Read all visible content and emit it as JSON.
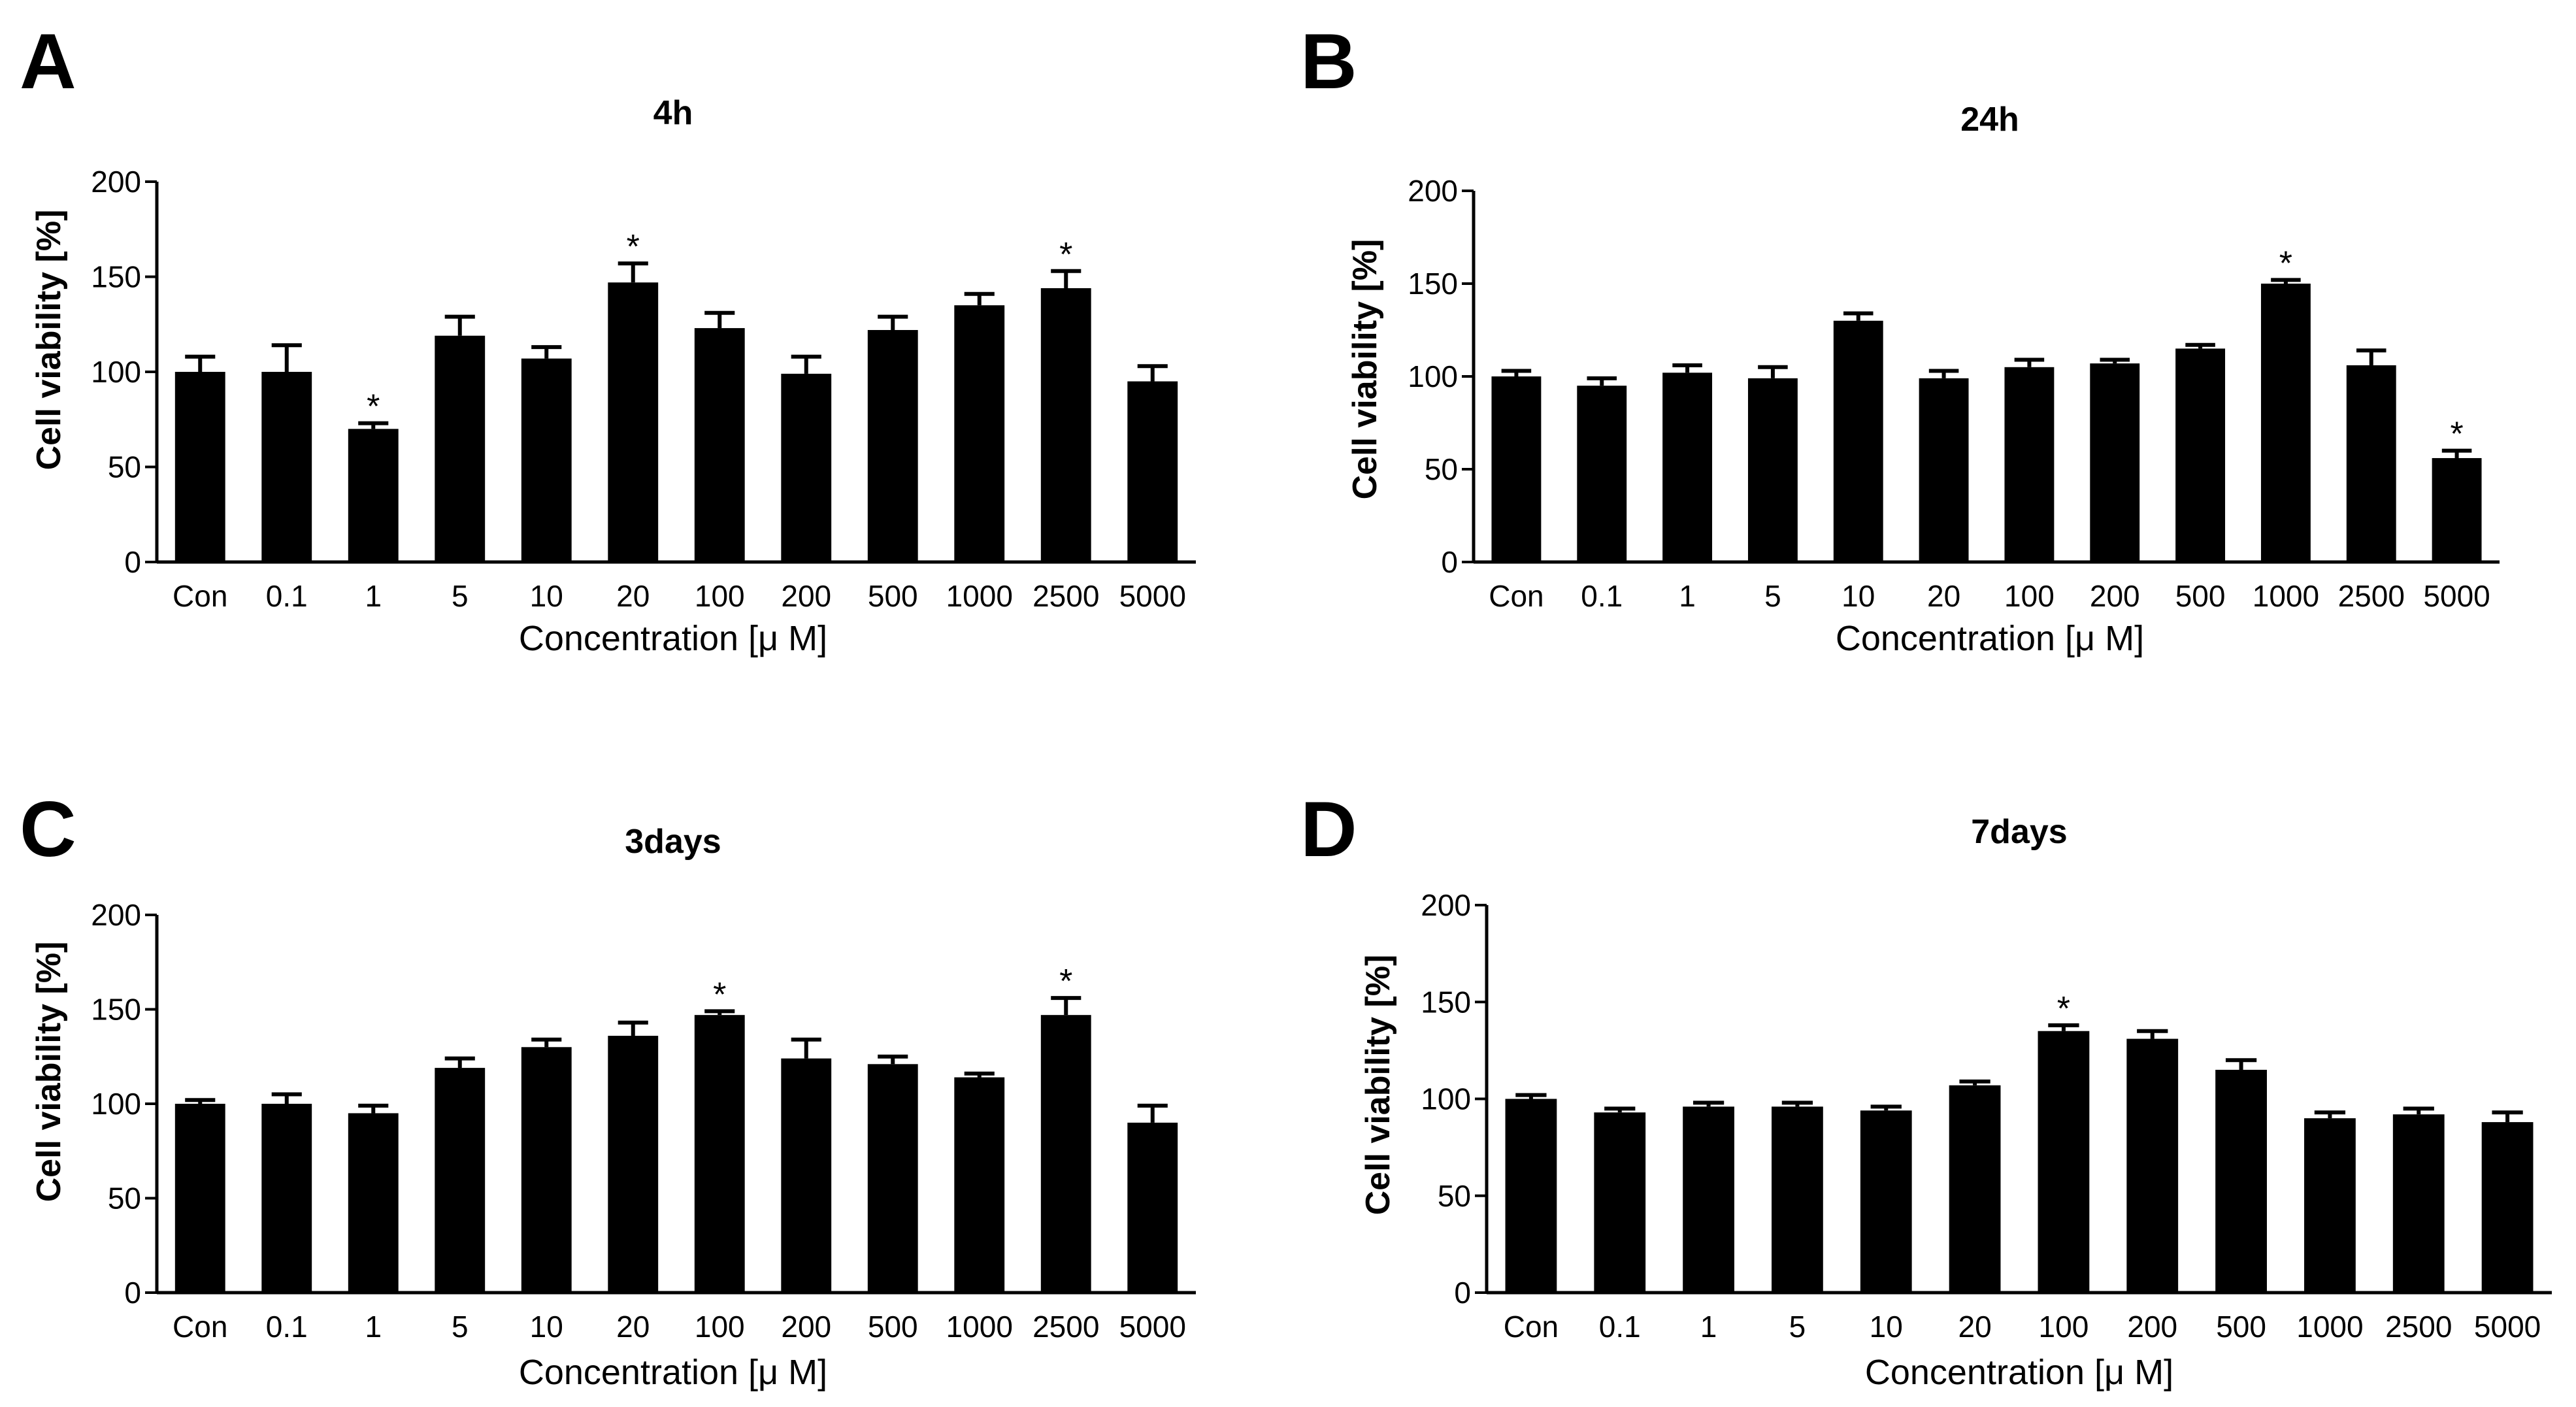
{
  "chart_data": [
    {
      "panel": "A",
      "type": "bar",
      "title": "4h",
      "xlabel": "Concentration [μ M]",
      "ylabel": "Cell viability [%]",
      "ylim": [
        0,
        200
      ],
      "yticks": [
        0,
        50,
        100,
        150,
        200
      ],
      "categories": [
        "Con",
        "0.1",
        "1",
        "5",
        "10",
        "20",
        "100",
        "200",
        "500",
        "1000",
        "2500",
        "5000"
      ],
      "values": [
        100,
        100,
        70,
        119,
        107,
        147,
        123,
        99,
        122,
        135,
        144,
        95
      ],
      "errors": [
        8,
        14,
        3,
        10,
        6,
        10,
        8,
        9,
        7,
        6,
        9,
        8
      ],
      "significance": [
        "",
        "",
        "*",
        "",
        "",
        "*",
        "",
        "",
        "",
        "",
        "*",
        ""
      ],
      "bar_color": "#000000"
    },
    {
      "panel": "B",
      "type": "bar",
      "title": "24h",
      "xlabel": "Concentration [μ M]",
      "ylabel": "Cell viability [%]",
      "ylim": [
        0,
        200
      ],
      "yticks": [
        0,
        50,
        100,
        150,
        200
      ],
      "categories": [
        "Con",
        "0.1",
        "1",
        "5",
        "10",
        "20",
        "100",
        "200",
        "500",
        "1000",
        "2500",
        "5000"
      ],
      "values": [
        100,
        95,
        102,
        99,
        130,
        99,
        105,
        107,
        115,
        150,
        106,
        56
      ],
      "errors": [
        3,
        4,
        4,
        6,
        4,
        4,
        4,
        2,
        2,
        2,
        8,
        4
      ],
      "significance": [
        "",
        "",
        "",
        "",
        "",
        "",
        "",
        "",
        "",
        "*",
        "",
        "*"
      ],
      "bar_color": "#000000"
    },
    {
      "panel": "C",
      "type": "bar",
      "title": "3days",
      "xlabel": "Concentration [μ M]",
      "ylabel": "Cell viability [%]",
      "ylim": [
        0,
        200
      ],
      "yticks": [
        0,
        50,
        100,
        150,
        200
      ],
      "categories": [
        "Con",
        "0.1",
        "1",
        "5",
        "10",
        "20",
        "100",
        "200",
        "500",
        "1000",
        "2500",
        "5000"
      ],
      "values": [
        100,
        100,
        95,
        119,
        130,
        136,
        147,
        124,
        121,
        114,
        147,
        90
      ],
      "errors": [
        2,
        5,
        4,
        5,
        4,
        7,
        2,
        10,
        4,
        2,
        9,
        9
      ],
      "significance": [
        "",
        "",
        "",
        "",
        "",
        "",
        "*",
        "",
        "",
        "",
        "*",
        ""
      ],
      "bar_color": "#000000"
    },
    {
      "panel": "D",
      "type": "bar",
      "title": "7days",
      "xlabel": "Concentration [μ M]",
      "ylabel": "Cell viability [%]",
      "ylim": [
        0,
        200
      ],
      "yticks": [
        0,
        50,
        100,
        150,
        200
      ],
      "categories": [
        "Con",
        "0.1",
        "1",
        "5",
        "10",
        "20",
        "100",
        "200",
        "500",
        "1000",
        "2500",
        "5000"
      ],
      "values": [
        100,
        93,
        96,
        96,
        94,
        107,
        135,
        131,
        115,
        90,
        92,
        88
      ],
      "errors": [
        2,
        2,
        2,
        2,
        2,
        2,
        3,
        4,
        5,
        3,
        3,
        5
      ],
      "significance": [
        "",
        "",
        "",
        "",
        "",
        "",
        "*",
        "",
        "",
        "",
        "",
        ""
      ],
      "bar_color": "#000000"
    }
  ]
}
